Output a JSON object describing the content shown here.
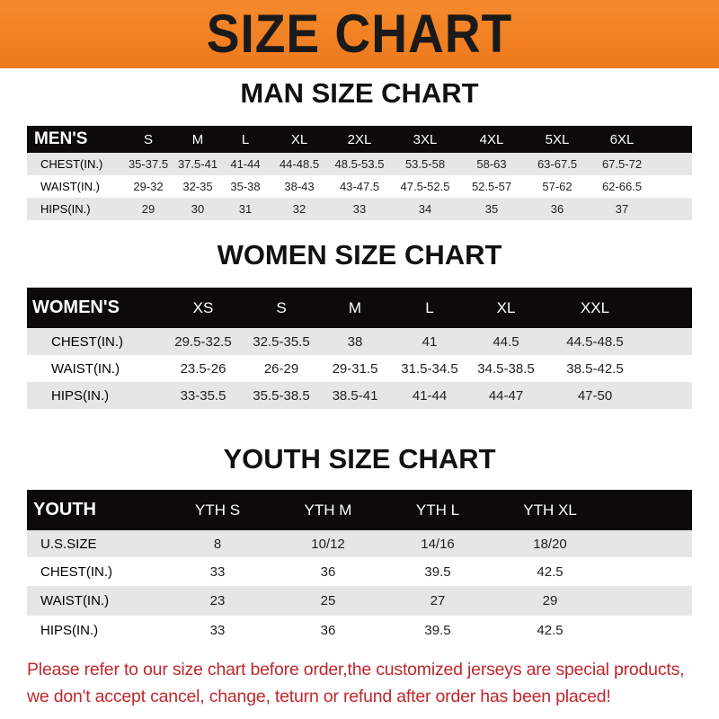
{
  "banner": {
    "title": "SIZE CHART"
  },
  "men": {
    "title": "MAN SIZE CHART",
    "header": [
      "MEN'S",
      "S",
      "M",
      "L",
      "XL",
      "2XL",
      "3XL",
      "4XL",
      "5XL",
      "6XL"
    ],
    "rows": [
      [
        "CHEST(IN.)",
        "35-37.5",
        "37.5-41",
        "41-44",
        "44-48.5",
        "48.5-53.5",
        "53.5-58",
        "58-63",
        "63-67.5",
        "67.5-72"
      ],
      [
        "WAIST(IN.)",
        "29-32",
        "32-35",
        "35-38",
        "38-43",
        "43-47.5",
        "47.5-52.5",
        "52.5-57",
        "57-62",
        "62-66.5"
      ],
      [
        "HIPS(IN.)",
        "29",
        "30",
        "31",
        "32",
        "33",
        "34",
        "35",
        "36",
        "37"
      ]
    ]
  },
  "women": {
    "title": "WOMEN SIZE CHART",
    "header": [
      "WOMEN'S",
      "XS",
      "S",
      "M",
      "L",
      "XL",
      "XXL"
    ],
    "rows": [
      [
        "CHEST(IN.)",
        "29.5-32.5",
        "32.5-35.5",
        "38",
        "41",
        "44.5",
        "44.5-48.5"
      ],
      [
        "WAIST(IN.)",
        "23.5-26",
        "26-29",
        "29-31.5",
        "31.5-34.5",
        "34.5-38.5",
        "38.5-42.5"
      ],
      [
        "HIPS(IN.)",
        "33-35.5",
        "35.5-38.5",
        "38.5-41",
        "41-44",
        "44-47",
        "47-50"
      ]
    ]
  },
  "youth": {
    "title": "YOUTH SIZE CHART",
    "header": [
      "YOUTH",
      "YTH S",
      "YTH M",
      "YTH L",
      "YTH XL"
    ],
    "rows": [
      [
        "U.S.SIZE",
        "8",
        "10/12",
        "14/16",
        "18/20"
      ],
      [
        "CHEST(IN.)",
        "33",
        "36",
        "39.5",
        "42.5"
      ],
      [
        "WAIST(IN.)",
        "23",
        "25",
        "27",
        "29"
      ],
      [
        "HIPS(IN.)",
        "33",
        "36",
        "39.5",
        "42.5"
      ]
    ]
  },
  "notice": {
    "line1": "Please refer to our size chart before order,the customized jerseys are special products,",
    "line2": "we don't accept cancel, change, teturn or refund after order has been placed!"
  },
  "colors": {
    "banner": "#f07f22",
    "header_row": "#0c0a0a",
    "stripe": "#e6e6e6",
    "notice": "#c0272d"
  }
}
